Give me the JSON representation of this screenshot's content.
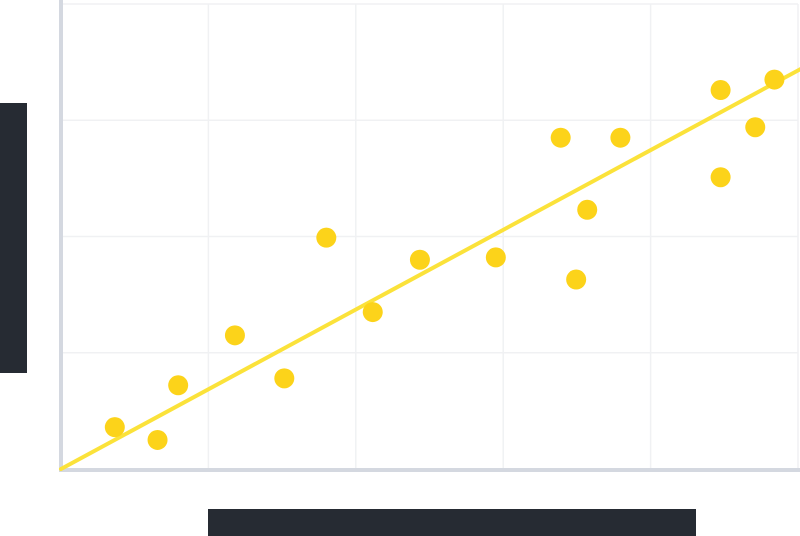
{
  "chart_data": {
    "type": "scatter",
    "title": "",
    "xlabel": "",
    "ylabel": "",
    "xlim": [
      0,
      10
    ],
    "ylim": [
      0,
      4
    ],
    "grid": true,
    "legend": "none",
    "points": [
      {
        "x": 0.73,
        "y": 0.36
      },
      {
        "x": 1.31,
        "y": 0.25
      },
      {
        "x": 1.59,
        "y": 0.72
      },
      {
        "x": 2.36,
        "y": 1.15
      },
      {
        "x": 3.03,
        "y": 0.78
      },
      {
        "x": 3.6,
        "y": 1.99
      },
      {
        "x": 4.23,
        "y": 1.35
      },
      {
        "x": 4.87,
        "y": 1.8
      },
      {
        "x": 5.9,
        "y": 1.82
      },
      {
        "x": 6.78,
        "y": 2.85
      },
      {
        "x": 6.99,
        "y": 1.63
      },
      {
        "x": 7.14,
        "y": 2.23
      },
      {
        "x": 7.59,
        "y": 2.85
      },
      {
        "x": 8.95,
        "y": 3.26
      },
      {
        "x": 8.95,
        "y": 2.51
      },
      {
        "x": 9.42,
        "y": 2.94
      },
      {
        "x": 9.68,
        "y": 3.35
      }
    ],
    "trendline": {
      "x": [
        0,
        10
      ],
      "y": [
        0,
        3.43
      ]
    },
    "colors": {
      "points": "#fcd31a",
      "trendline": "#fbe23a",
      "axis": "#d4d8e0",
      "grid": "#f0f1f3",
      "label_bars": "#262b33"
    }
  }
}
